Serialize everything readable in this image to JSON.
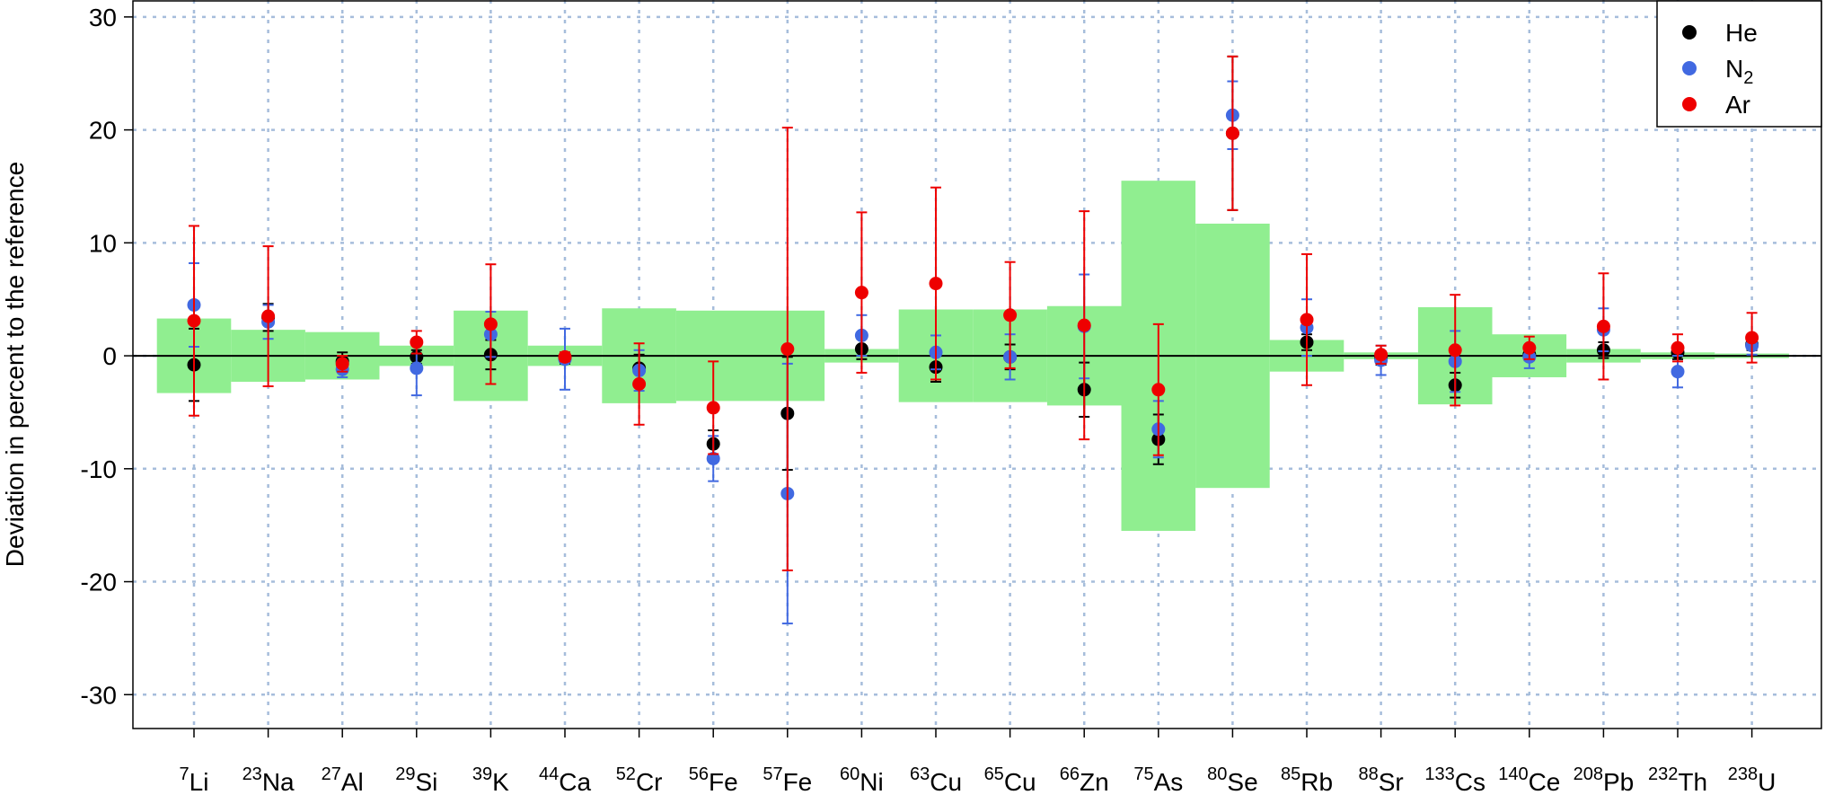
{
  "chart_data": {
    "type": "scatter",
    "title": "",
    "xlabel": "",
    "ylabel": "Deviation in percent to the reference",
    "ylim": [
      -33,
      31.5
    ],
    "yticks": [
      -30,
      -20,
      -10,
      0,
      10,
      20,
      30
    ],
    "grid": true,
    "legend_position": "top-right",
    "categories": [
      {
        "mass": "7",
        "element": "Li"
      },
      {
        "mass": "23",
        "element": "Na"
      },
      {
        "mass": "27",
        "element": "Al"
      },
      {
        "mass": "29",
        "element": "Si"
      },
      {
        "mass": "39",
        "element": "K"
      },
      {
        "mass": "44",
        "element": "Ca"
      },
      {
        "mass": "52",
        "element": "Cr"
      },
      {
        "mass": "56",
        "element": "Fe"
      },
      {
        "mass": "57",
        "element": "Fe"
      },
      {
        "mass": "60",
        "element": "Ni"
      },
      {
        "mass": "63",
        "element": "Cu"
      },
      {
        "mass": "65",
        "element": "Cu"
      },
      {
        "mass": "66",
        "element": "Zn"
      },
      {
        "mass": "75",
        "element": "As"
      },
      {
        "mass": "80",
        "element": "Se"
      },
      {
        "mass": "85",
        "element": "Rb"
      },
      {
        "mass": "88",
        "element": "Sr"
      },
      {
        "mass": "133",
        "element": "Cs"
      },
      {
        "mass": "140",
        "element": "Ce"
      },
      {
        "mass": "208",
        "element": "Pb"
      },
      {
        "mass": "232",
        "element": "Th"
      },
      {
        "mass": "238",
        "element": "U"
      }
    ],
    "uncertainty_band": {
      "color": "#90ee90",
      "values": [
        3.3,
        2.3,
        2.1,
        0.9,
        4.0,
        0.9,
        4.2,
        4.0,
        4.0,
        0.6,
        4.1,
        4.1,
        4.4,
        15.5,
        11.7,
        1.4,
        0.3,
        4.3,
        1.9,
        0.6,
        0.3,
        0.2
      ]
    },
    "series": [
      {
        "name": "He",
        "color": "#000000",
        "values": [
          -0.8,
          3.4,
          -0.5,
          -0.1,
          0.1,
          -0.2,
          -1.1,
          -7.8,
          -5.1,
          0.6,
          -1.0,
          -0.1,
          -3.0,
          -7.4,
          19.7,
          1.2,
          -0.2,
          -2.6,
          0.1,
          0.5,
          0.3,
          1.0
        ],
        "errors": [
          3.2,
          1.2,
          0.8,
          0.6,
          1.3,
          0.5,
          1.2,
          1.2,
          5.0,
          0.9,
          1.3,
          1.1,
          2.4,
          2.2,
          6.8,
          0.7,
          0.6,
          1.1,
          0.5,
          0.7,
          0.6,
          0.5
        ]
      },
      {
        "name": "N2",
        "color": "#4169e1",
        "values": [
          4.5,
          3.0,
          -1.2,
          -1.1,
          1.9,
          -0.3,
          -1.3,
          -9.1,
          -12.2,
          1.8,
          0.3,
          -0.1,
          2.6,
          -6.5,
          21.3,
          2.5,
          -0.4,
          -0.5,
          -0.1,
          2.3,
          -1.4,
          0.9
        ],
        "errors": [
          3.7,
          1.5,
          0.7,
          2.4,
          2.0,
          2.7,
          1.8,
          2.0,
          11.5,
          1.8,
          1.5,
          2.0,
          4.6,
          2.5,
          3.0,
          2.5,
          1.3,
          2.7,
          1.0,
          1.9,
          1.4,
          0.8
        ]
      },
      {
        "name": "Ar",
        "color": "#ee0000",
        "values": [
          3.1,
          3.5,
          -0.7,
          1.2,
          2.8,
          -0.1,
          -2.5,
          -4.6,
          0.6,
          5.6,
          6.4,
          3.6,
          2.7,
          -3.0,
          19.7,
          3.2,
          0.1,
          0.5,
          0.7,
          2.6,
          0.7,
          1.6
        ],
        "errors": [
          8.4,
          6.2,
          0.7,
          1.0,
          5.3,
          0.4,
          3.6,
          4.1,
          19.6,
          7.1,
          8.5,
          4.7,
          10.1,
          5.8,
          6.8,
          5.8,
          0.8,
          4.9,
          1.0,
          4.7,
          1.2,
          2.2
        ]
      }
    ]
  },
  "legend": {
    "items": [
      {
        "label": "He",
        "sub": ""
      },
      {
        "label": "N",
        "sub": "2"
      },
      {
        "label": "Ar",
        "sub": ""
      }
    ]
  }
}
